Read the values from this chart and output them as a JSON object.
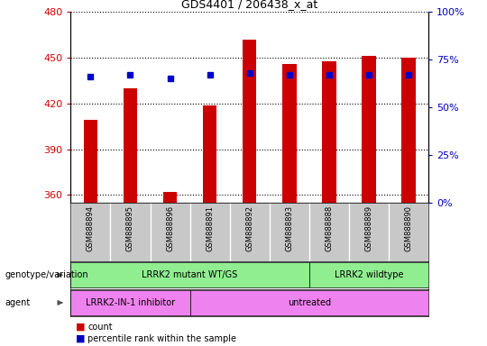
{
  "title": "GDS4401 / 206438_x_at",
  "samples": [
    "GSM888894",
    "GSM888895",
    "GSM888896",
    "GSM888891",
    "GSM888892",
    "GSM888893",
    "GSM888888",
    "GSM888889",
    "GSM888890"
  ],
  "counts": [
    409,
    430,
    362,
    419,
    462,
    446,
    448,
    451,
    450
  ],
  "percentile_ranks": [
    66,
    67,
    65,
    67,
    68,
    67,
    67,
    67,
    67
  ],
  "ylim_left": [
    355,
    480
  ],
  "ylim_right": [
    0,
    100
  ],
  "yticks_left": [
    360,
    390,
    420,
    450,
    480
  ],
  "yticks_right": [
    0,
    25,
    50,
    75,
    100
  ],
  "bar_color": "#cc0000",
  "dot_color": "#0000cc",
  "bar_bottom": 355,
  "genotype_group1_label": "LRRK2 mutant WT/GS",
  "genotype_group1_cols": 6,
  "genotype_group2_label": "LRRK2 wildtype",
  "genotype_group2_cols": 3,
  "agent_group1_label": "LRRK2-IN-1 inhibitor",
  "agent_group1_cols": 3,
  "agent_group2_label": "untreated",
  "agent_group2_cols": 6,
  "genotype_color": "#90ee90",
  "agent1_color": "#d8d8ff",
  "agent_color": "#ee82ee",
  "tick_area_color": "#c8c8c8",
  "ylabel_left_color": "#cc0000",
  "ylabel_right_color": "#0000bb",
  "legend_count_color": "#cc0000",
  "legend_pct_color": "#0000bb",
  "bar_width": 0.35
}
